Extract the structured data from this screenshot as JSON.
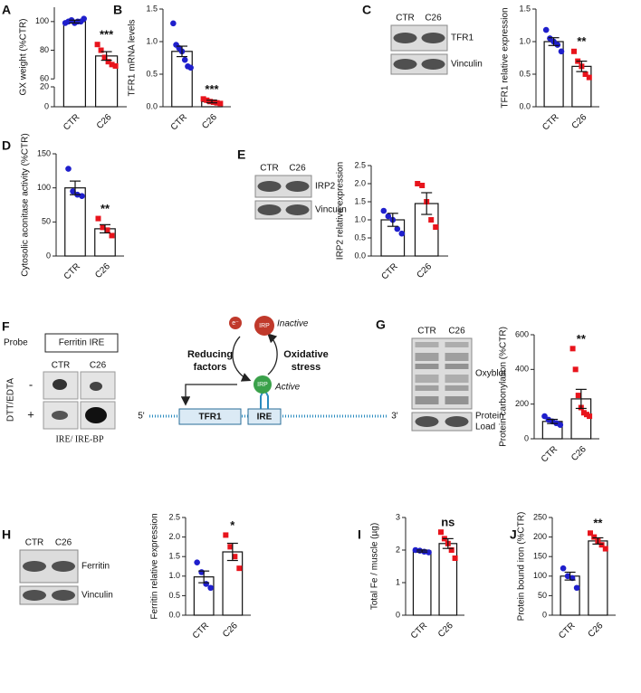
{
  "chart_data": [
    {
      "type": "bar",
      "panel": "A",
      "ylabel": "GX weight (%CTR)",
      "categories": [
        "CTR",
        "C26"
      ],
      "values": [
        100,
        76
      ],
      "errors": [
        1,
        3
      ],
      "points": [
        [
          99,
          100,
          101,
          99,
          100,
          100,
          102
        ],
        [
          84,
          80,
          75,
          72,
          70,
          69
        ]
      ],
      "colors": [
        "#1f1fcc",
        "#e8141c"
      ],
      "ylim": [
        0,
        110
      ],
      "axis_break": [
        20,
        60
      ],
      "yticks": [
        0,
        20,
        60,
        80,
        100
      ],
      "annotation": "***"
    },
    {
      "type": "bar",
      "panel": "B",
      "ylabel": "TFR1 mRNA levels",
      "categories": [
        "CTR",
        "C26"
      ],
      "values": [
        0.85,
        0.08
      ],
      "errors": [
        0.08,
        0.02
      ],
      "points": [
        [
          1.28,
          0.95,
          0.9,
          0.85,
          0.72,
          0.62,
          0.6
        ],
        [
          0.12,
          0.1,
          0.08,
          0.07,
          0.06,
          0.05
        ]
      ],
      "colors": [
        "#1f1fcc",
        "#e8141c"
      ],
      "ylim": [
        0,
        1.5
      ],
      "yticks": [
        {
          "value": 0,
          "label": "0.0"
        },
        0.5,
        {
          "value": 1,
          "label": "1.0"
        },
        1.5
      ],
      "annotation": "***"
    },
    {
      "type": "bar",
      "panel": "C",
      "ylabel": "TFR1 relative expression",
      "categories": [
        "CTR",
        "C26"
      ],
      "values": [
        1.0,
        0.62
      ],
      "errors": [
        0.06,
        0.08
      ],
      "points": [
        [
          1.18,
          1.05,
          1.0,
          0.95,
          0.85
        ],
        [
          0.85,
          0.7,
          0.62,
          0.5,
          0.45
        ]
      ],
      "colors": [
        "#1f1fcc",
        "#e8141c"
      ],
      "ylim": [
        0,
        1.5
      ],
      "yticks": [
        {
          "value": 0,
          "label": "0.0"
        },
        0.5,
        {
          "value": 1,
          "label": "1.0"
        },
        1.5
      ],
      "annotation": "**",
      "blot": {
        "lanes": [
          "CTR",
          "C26"
        ],
        "rows": [
          [
            "TFR1"
          ],
          [
            "Vinculin"
          ]
        ]
      }
    },
    {
      "type": "bar",
      "panel": "D",
      "ylabel": "Cytosolic aconitase activity (%CTR)",
      "categories": [
        "CTR",
        "C26"
      ],
      "values": [
        100,
        40
      ],
      "errors": [
        10,
        6
      ],
      "points": [
        [
          128,
          95,
          90,
          88
        ],
        [
          55,
          42,
          38,
          30
        ]
      ],
      "colors": [
        "#1f1fcc",
        "#e8141c"
      ],
      "ylim": [
        0,
        150
      ],
      "yticks": [
        0,
        50,
        100,
        150
      ],
      "annotation": "**"
    },
    {
      "type": "bar",
      "panel": "E",
      "ylabel": "IRP2 relative expression",
      "categories": [
        "CTR",
        "C26"
      ],
      "values": [
        1.0,
        1.45
      ],
      "errors": [
        0.18,
        0.3
      ],
      "points": [
        [
          1.25,
          1.1,
          1.0,
          0.75,
          0.62
        ],
        [
          2.0,
          1.95,
          1.5,
          1.0,
          0.8
        ]
      ],
      "colors": [
        "#1f1fcc",
        "#e8141c"
      ],
      "ylim": [
        0,
        2.5
      ],
      "yticks": [
        {
          "value": 0,
          "label": "0.0"
        },
        0.5,
        {
          "value": 1,
          "label": "1.0"
        },
        1.5,
        {
          "value": 2,
          "label": "2.0"
        },
        2.5
      ],
      "blot": {
        "lanes": [
          "CTR",
          "C26"
        ],
        "rows": [
          [
            "IRP2"
          ],
          [
            "Vinculin"
          ]
        ]
      }
    },
    {
      "type": "bar",
      "panel": "G",
      "ylabel": "Protein carbonylation (%CTR)",
      "categories": [
        "CTR",
        "C26"
      ],
      "values": [
        100,
        230
      ],
      "errors": [
        12,
        55
      ],
      "points": [
        [
          130,
          110,
          100,
          90,
          80
        ],
        [
          520,
          400,
          250,
          180,
          150,
          140,
          130
        ]
      ],
      "colors": [
        "#1f1fcc",
        "#e8141c"
      ],
      "ylim": [
        0,
        600
      ],
      "yticks": [
        0,
        200,
        400,
        600
      ],
      "annotation": "**",
      "blot": {
        "lanes": [
          "CTR",
          "C26"
        ],
        "rows": [
          [
            "Oxyblot"
          ],
          [
            "Protein",
            "Load"
          ]
        ]
      }
    },
    {
      "type": "bar",
      "panel": "H",
      "ylabel": "Ferritin relative expression",
      "categories": [
        "CTR",
        "C26"
      ],
      "values": [
        0.98,
        1.62
      ],
      "errors": [
        0.15,
        0.22
      ],
      "points": [
        [
          1.35,
          1.1,
          0.8,
          0.7
        ],
        [
          2.05,
          1.75,
          1.5,
          1.2
        ]
      ],
      "colors": [
        "#1f1fcc",
        "#e8141c"
      ],
      "ylim": [
        0,
        2.5
      ],
      "yticks": [
        {
          "value": 0,
          "label": "0.0"
        },
        0.5,
        {
          "value": 1,
          "label": "1.0"
        },
        1.5,
        {
          "value": 2,
          "label": "2.0"
        },
        2.5
      ],
      "annotation": "*",
      "blot": {
        "lanes": [
          "CTR",
          "C26"
        ],
        "rows": [
          [
            "Ferritin"
          ],
          [
            "Vinculin"
          ]
        ]
      }
    },
    {
      "type": "bar",
      "panel": "I",
      "ylabel": "Total Fe / muscle (µg)",
      "categories": [
        "CTR",
        "C26"
      ],
      "values": [
        1.97,
        2.2
      ],
      "errors": [
        0.03,
        0.15
      ],
      "points": [
        [
          2.0,
          1.98,
          1.95,
          1.93
        ],
        [
          2.55,
          2.35,
          2.2,
          2.0,
          1.75
        ]
      ],
      "colors": [
        "#1f1fcc",
        "#e8141c"
      ],
      "ylim": [
        0,
        3
      ],
      "yticks": [
        0,
        1,
        2,
        3
      ],
      "annotation": "ns"
    },
    {
      "type": "bar",
      "panel": "J",
      "ylabel": "Protein bound iron (%CTR)",
      "categories": [
        "CTR",
        "C26"
      ],
      "values": [
        100,
        190
      ],
      "errors": [
        10,
        8
      ],
      "points": [
        [
          120,
          100,
          95,
          70
        ],
        [
          210,
          200,
          190,
          180,
          170
        ]
      ],
      "colors": [
        "#1f1fcc",
        "#e8141c"
      ],
      "ylim": [
        0,
        250
      ],
      "yticks": [
        0,
        50,
        100,
        150,
        200,
        250
      ],
      "annotation": "**"
    }
  ],
  "gel_shift": {
    "panel": "F",
    "probe_label": "Probe",
    "probe": "Ferritin IRE",
    "lanes": [
      "CTR",
      "C26"
    ],
    "condition": "DTT/EDTA",
    "rows": [
      "-",
      "+"
    ],
    "caption": "IRE/ IRE-BP"
  },
  "diagram": {
    "left": [
      "Reducing",
      "factors"
    ],
    "right": [
      "Oxidative",
      "stress"
    ],
    "inactive": "Inactive",
    "active": "Active",
    "protein_inactive": "IRP",
    "protein_active": "IRP",
    "electron": "e⁻",
    "five_prime": "5'",
    "three_prime": "3'",
    "gene": "TFR1",
    "element": "IRE"
  }
}
